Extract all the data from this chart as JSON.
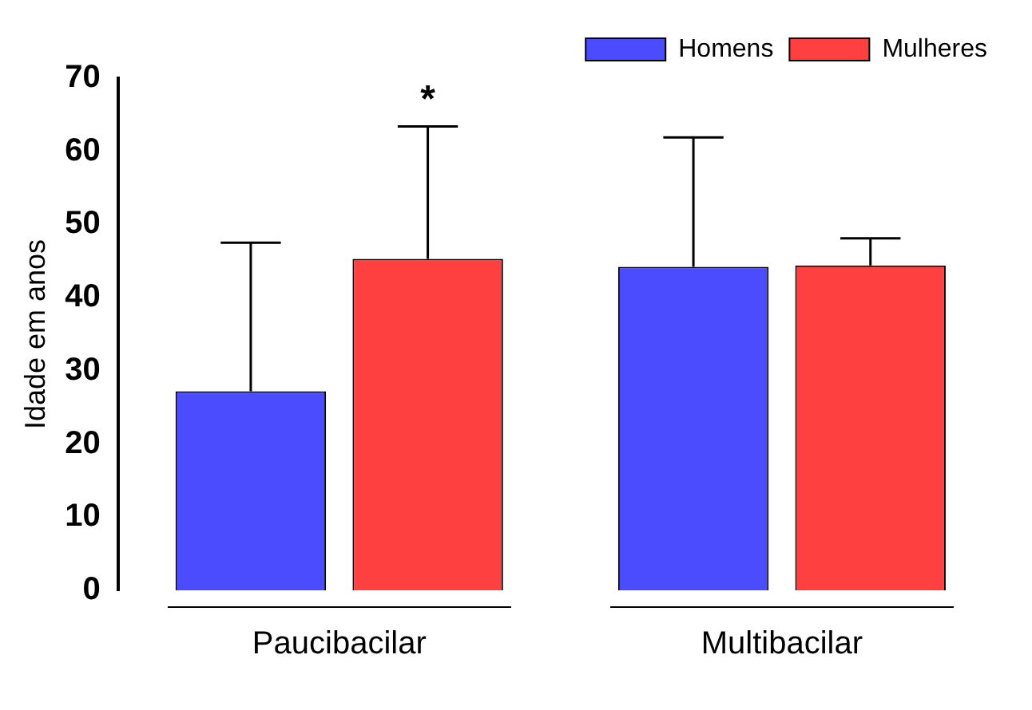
{
  "chart_data": {
    "type": "bar",
    "ylabel": "Idade em anos",
    "categories": [
      "Paucibacilar",
      "Multibacilar"
    ],
    "series": [
      {
        "name": "Homens",
        "color": "#4c4cff",
        "values": [
          27.2,
          44.2
        ],
        "errors": [
          [
            27.2,
            47.5
          ],
          [
            44.2,
            61.9
          ]
        ]
      },
      {
        "name": "Mulheres",
        "color": "#ff4040",
        "values": [
          45.3,
          44.4
        ],
        "errors": [
          [
            45.3,
            63.4
          ],
          [
            44.4,
            48.1
          ]
        ]
      }
    ],
    "ylim": [
      0,
      70
    ],
    "yticks": [
      0,
      10,
      20,
      30,
      40,
      50,
      60,
      70
    ],
    "grid": false,
    "legend": "top right",
    "annotations": [
      "*"
    ]
  }
}
